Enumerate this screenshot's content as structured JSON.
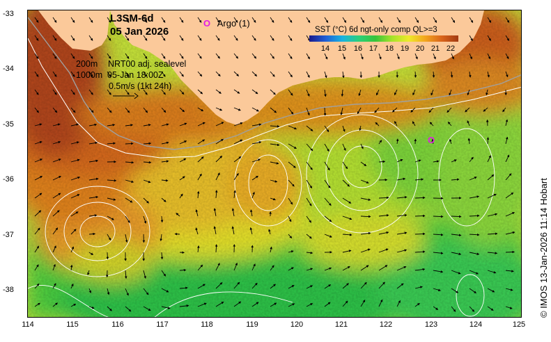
{
  "product": {
    "name": "L3SM-6d",
    "date": "05 Jan 2026"
  },
  "argo": {
    "marker": "O",
    "label": "Argo (1)"
  },
  "legend": {
    "isobath_shallow": "200m",
    "isobath_deep": "1000m",
    "sealevel_label": "NRT00 adj. sealevel",
    "sealevel_time": "05-Jan 18:00Z",
    "vector_scale": "0.5m/s (1kt 24h)"
  },
  "colorbar": {
    "title": "SST (°C) 6d ngt-only comp QL>=3",
    "ticks": [
      "14",
      "15",
      "16",
      "17",
      "18",
      "19",
      "20",
      "21",
      "22"
    ],
    "colors": [
      "#1a1a8c",
      "#1f5fd6",
      "#19b3e0",
      "#2bd07a",
      "#37c43a",
      "#a6e32a",
      "#eeea2a",
      "#f2a51e",
      "#d9641a",
      "#a23a12"
    ]
  },
  "map": {
    "latitude_labels": [
      "-33",
      "-34",
      "-35",
      "-36",
      "-37",
      "-38"
    ],
    "longitude_labels": [
      "114",
      "115",
      "116",
      "117",
      "118",
      "119",
      "120",
      "121",
      "122",
      "123",
      "124",
      "125"
    ],
    "land_color": "#fbc99a"
  },
  "copyright": "© IMOS 13-Jan-2026 11:14 Hobart"
}
